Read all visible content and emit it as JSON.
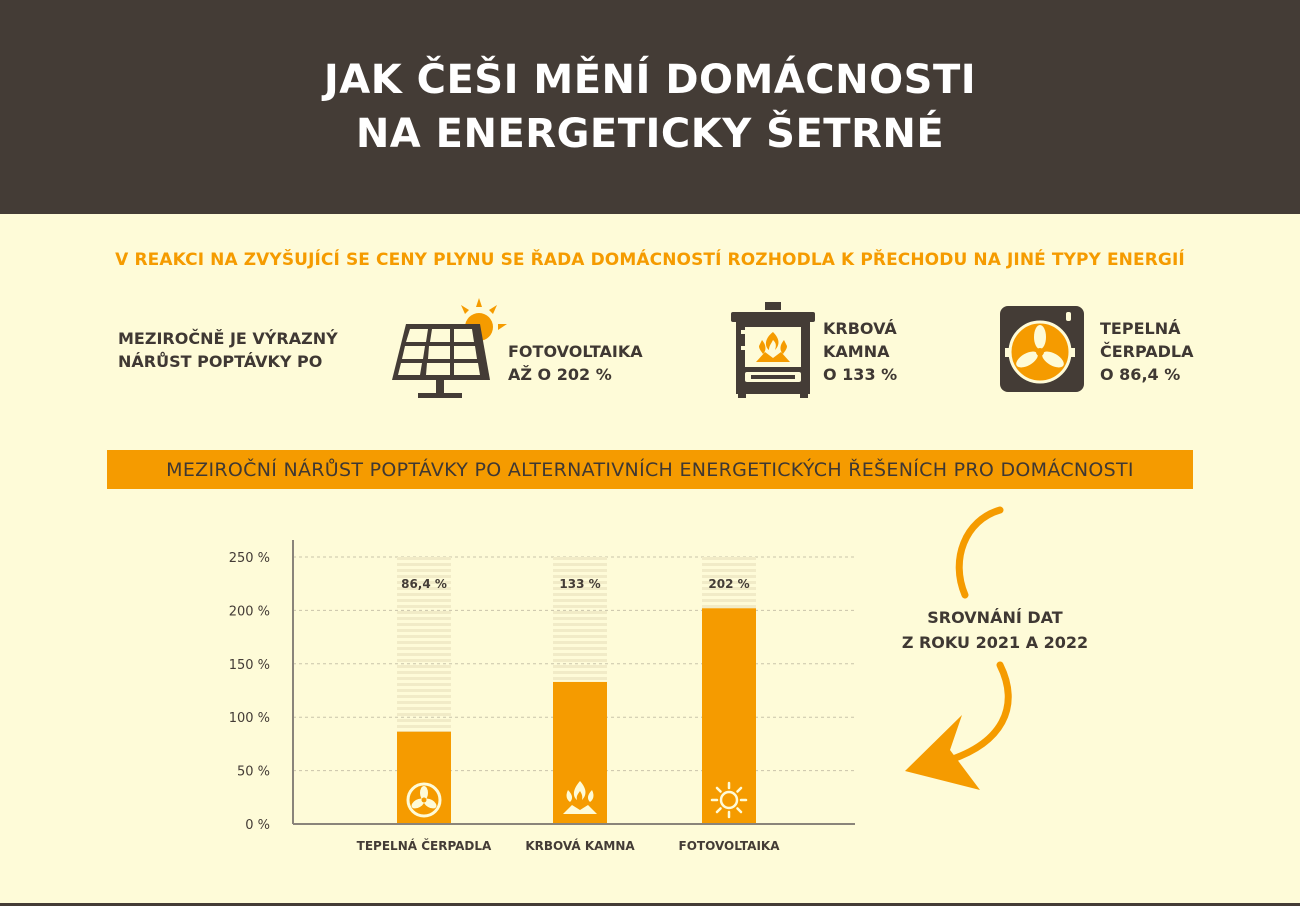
{
  "header": {
    "title_line1": "JAK ČEŠI MĚNÍ DOMÁCNOSTI",
    "title_line2": "NA ENERGETICKY ŠETRNÉ"
  },
  "subtitle": "V REAKCI NA ZVYŠUJÍCÍ SE CENY PLYNU SE ŘADA DOMÁCNOSTÍ ROZHODLA K PŘECHODU NA JINÉ TYPY ENERGIÍ",
  "lead": {
    "line1": "MEZIROČNĚ JE VÝRAZNÝ",
    "line2": "NÁRŮST POPTÁVKY PO"
  },
  "stats": [
    {
      "line1": "FOTOVOLTAIKA",
      "line2": "AŽ O 202 %",
      "icon": "solar-panel-icon"
    },
    {
      "line1": "KRBOVÁ",
      "line2": "KAMNA",
      "line3": "O 133 %",
      "icon": "stove-icon"
    },
    {
      "line1": "TEPELNÁ",
      "line2": "ČERPADLA",
      "line3": "O 86,4 %",
      "icon": "heat-pump-icon"
    }
  ],
  "banner": "MEZIROČNÍ NÁRŮST POPTÁVKY PO ALTERNATIVNÍCH ENERGETICKÝCH ŘEŠENÍCH PRO DOMÁCNOSTI",
  "comparison": {
    "line1": "SROVNÁNÍ DAT",
    "line2": "Z ROKU 2021 A 2022"
  },
  "colors": {
    "accent": "#f59b00",
    "dark": "#443c36",
    "background": "#fefbd8"
  },
  "chart_data": {
    "type": "bar",
    "categories": [
      "TEPELNÁ ČERPADLA",
      "KRBOVÁ KAMNA",
      "FOTOVOLTAIKA"
    ],
    "values": [
      86.4,
      133,
      202
    ],
    "value_labels": [
      "86,4 %",
      "133 %",
      "202 %"
    ],
    "bar_icons": [
      "fan-icon",
      "fire-icon",
      "sun-icon"
    ],
    "yticks": [
      0,
      50,
      100,
      150,
      200,
      250
    ],
    "ytick_labels": [
      "0 %",
      "50 %",
      "100 %",
      "150 %",
      "200 %",
      "250 %"
    ],
    "ylim": [
      0,
      250
    ],
    "grid": true,
    "title": "",
    "xlabel": "",
    "ylabel": ""
  }
}
